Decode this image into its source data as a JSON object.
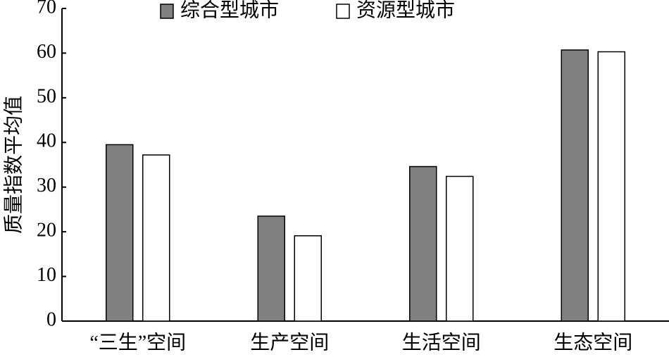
{
  "chart_data": {
    "type": "bar",
    "y_label": "质量指数平均值",
    "categories": [
      "“三生”空间",
      "生产空间",
      "生活空间",
      "生态空间"
    ],
    "series": [
      {
        "name": "综合型城市",
        "color": "#808080",
        "values": [
          39.5,
          23.5,
          34.6,
          60.7
        ]
      },
      {
        "name": "资源型城市",
        "color": "#ffffff",
        "values": [
          37.2,
          19.1,
          32.4,
          60.3
        ]
      }
    ],
    "ylim": [
      0,
      70
    ],
    "yticks": [
      0,
      10,
      20,
      30,
      40,
      50,
      60,
      70
    ],
    "legend": "top"
  }
}
